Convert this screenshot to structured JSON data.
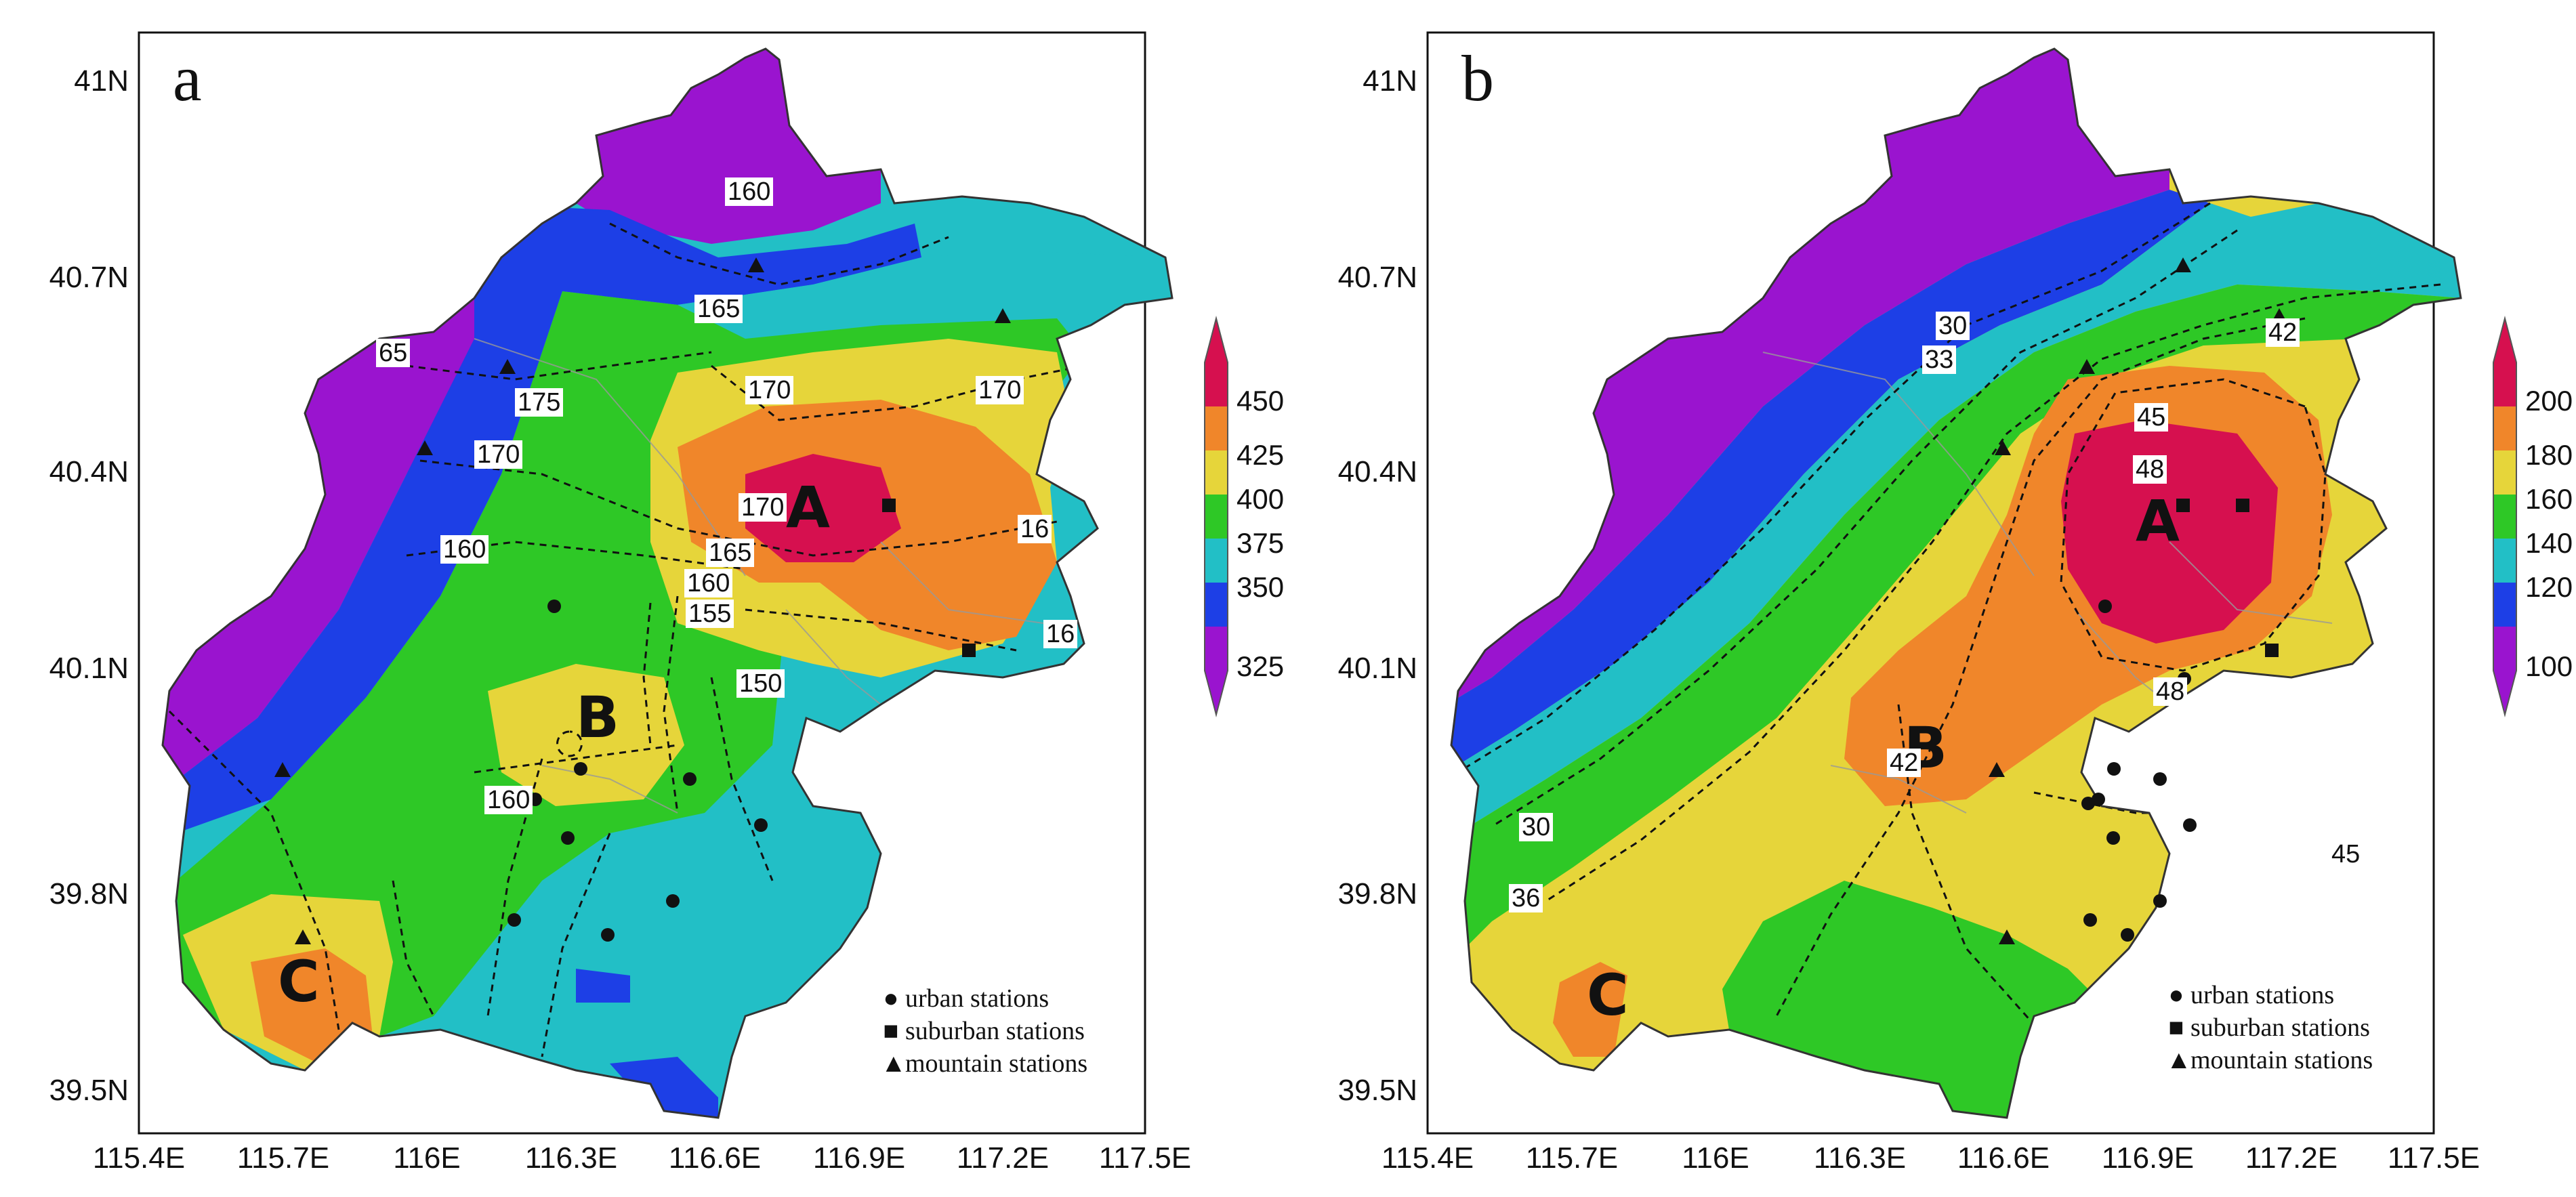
{
  "x_ticks": [
    "115.4E",
    "115.7E",
    "116E",
    "116.3E",
    "116.6E",
    "116.9E",
    "117.2E",
    "117.5E"
  ],
  "y_ticks": [
    "41N",
    "40.7N",
    "40.4N",
    "40.1N",
    "39.8N",
    "39.5N"
  ],
  "legend": {
    "urban": "urban stations",
    "suburban": "suburban stations",
    "mountain": "mountain stations",
    "urban_symbol": "●",
    "suburban_symbol": "■",
    "mountain_symbol": "▲"
  },
  "panels": [
    {
      "letter": "a",
      "regions": [
        "A",
        "B",
        "C"
      ],
      "colorbar_labels": [
        "450",
        "425",
        "400",
        "375",
        "350",
        "325"
      ],
      "colors": [
        "#d6104f",
        "#f0862a",
        "#e6d53a",
        "#2ec826",
        "#22bfc6",
        "#1d3fe6",
        "#9a14cf"
      ],
      "contour_labels": [
        "160",
        "165",
        "175",
        "170",
        "170",
        "170",
        "160",
        "170",
        "165",
        "160",
        "155",
        "150",
        "160",
        "16",
        "16",
        "65"
      ]
    },
    {
      "letter": "b",
      "regions": [
        "A",
        "B",
        "C"
      ],
      "colorbar_labels": [
        "200",
        "180",
        "160",
        "140",
        "120",
        "100"
      ],
      "colors": [
        "#d6104f",
        "#f0862a",
        "#e6d53a",
        "#2ec826",
        "#22bfc6",
        "#1d3fe6",
        "#9a14cf"
      ],
      "contour_labels": [
        "30",
        "33",
        "42",
        "45",
        "48",
        "48",
        "42",
        "45",
        "30",
        "36"
      ]
    }
  ]
}
